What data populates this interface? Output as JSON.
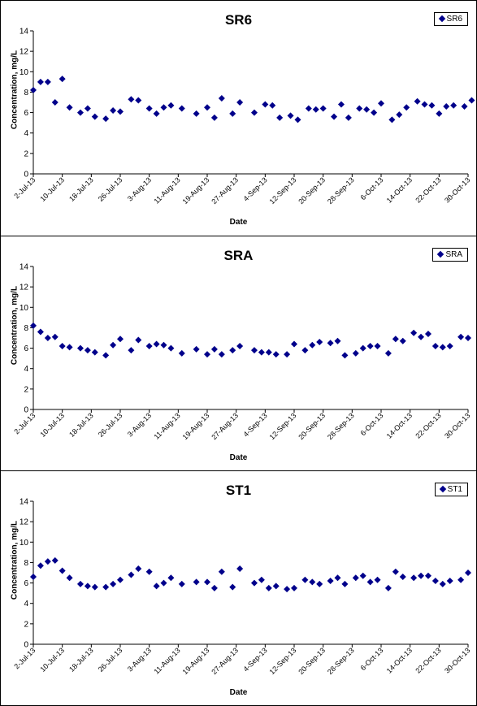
{
  "chart_data": [
    {
      "type": "scatter",
      "title": "SR6",
      "xlabel": "Date",
      "ylabel": "Concentration, mg/L",
      "ylim": [
        0,
        14
      ],
      "yticks": [
        0,
        2,
        4,
        6,
        8,
        10,
        12,
        14
      ],
      "xlim": [
        "2013-07-02",
        "2013-10-30"
      ],
      "xticks": [
        "2-Jul-13",
        "10-Jul-13",
        "18-Jul-13",
        "26-Jul-13",
        "3-Aug-13",
        "11-Aug-13",
        "19-Aug-13",
        "27-Aug-13",
        "4-Sep-13",
        "12-Sep-13",
        "20-Sep-13",
        "28-Sep-13",
        "6-Oct-13",
        "14-Oct-13",
        "22-Oct-13",
        "30-Oct-13"
      ],
      "legend_position": "top-right",
      "series": [
        {
          "name": "SR6",
          "color": "#00008B",
          "marker": "diamond",
          "points": [
            [
              "2013-07-02",
              8.2
            ],
            [
              "2013-07-04",
              9.0
            ],
            [
              "2013-07-06",
              9.0
            ],
            [
              "2013-07-08",
              7.0
            ],
            [
              "2013-07-10",
              9.3
            ],
            [
              "2013-07-12",
              6.5
            ],
            [
              "2013-07-15",
              6.0
            ],
            [
              "2013-07-17",
              6.4
            ],
            [
              "2013-07-19",
              5.6
            ],
            [
              "2013-07-22",
              5.4
            ],
            [
              "2013-07-24",
              6.2
            ],
            [
              "2013-07-26",
              6.1
            ],
            [
              "2013-07-29",
              7.3
            ],
            [
              "2013-07-31",
              7.2
            ],
            [
              "2013-08-03",
              6.4
            ],
            [
              "2013-08-05",
              5.9
            ],
            [
              "2013-08-07",
              6.5
            ],
            [
              "2013-08-09",
              6.7
            ],
            [
              "2013-08-12",
              6.4
            ],
            [
              "2013-08-16",
              5.9
            ],
            [
              "2013-08-19",
              6.5
            ],
            [
              "2013-08-21",
              5.5
            ],
            [
              "2013-08-23",
              7.4
            ],
            [
              "2013-08-26",
              5.9
            ],
            [
              "2013-08-28",
              7.0
            ],
            [
              "2013-09-01",
              6.0
            ],
            [
              "2013-09-04",
              6.8
            ],
            [
              "2013-09-06",
              6.7
            ],
            [
              "2013-09-08",
              5.5
            ],
            [
              "2013-09-11",
              5.7
            ],
            [
              "2013-09-13",
              5.3
            ],
            [
              "2013-09-16",
              6.4
            ],
            [
              "2013-09-18",
              6.3
            ],
            [
              "2013-09-20",
              6.4
            ],
            [
              "2013-09-23",
              5.6
            ],
            [
              "2013-09-25",
              6.8
            ],
            [
              "2013-09-27",
              5.5
            ],
            [
              "2013-09-30",
              6.4
            ],
            [
              "2013-10-02",
              6.3
            ],
            [
              "2013-10-04",
              6.0
            ],
            [
              "2013-10-06",
              6.9
            ],
            [
              "2013-10-09",
              5.3
            ],
            [
              "2013-10-11",
              5.8
            ],
            [
              "2013-10-13",
              6.5
            ],
            [
              "2013-10-16",
              7.1
            ],
            [
              "2013-10-18",
              6.8
            ],
            [
              "2013-10-20",
              6.7
            ],
            [
              "2013-10-22",
              5.9
            ],
            [
              "2013-10-24",
              6.6
            ],
            [
              "2013-10-26",
              6.7
            ],
            [
              "2013-10-29",
              6.6
            ],
            [
              "2013-10-31",
              7.2
            ]
          ]
        }
      ]
    },
    {
      "type": "scatter",
      "title": "SRA",
      "xlabel": "Date",
      "ylabel": "Concentration, mg/L",
      "ylim": [
        0,
        14
      ],
      "yticks": [
        0,
        2,
        4,
        6,
        8,
        10,
        12,
        14
      ],
      "xlim": [
        "2013-07-02",
        "2013-10-30"
      ],
      "xticks": [
        "2-Jul-13",
        "10-Jul-13",
        "18-Jul-13",
        "26-Jul-13",
        "3-Aug-13",
        "11-Aug-13",
        "19-Aug-13",
        "27-Aug-13",
        "4-Sep-13",
        "12-Sep-13",
        "20-Sep-13",
        "28-Sep-13",
        "6-Oct-13",
        "14-Oct-13",
        "22-Oct-13",
        "30-Oct-13"
      ],
      "legend_position": "top-right",
      "series": [
        {
          "name": "SRA",
          "color": "#00008B",
          "marker": "diamond",
          "points": [
            [
              "2013-07-02",
              8.2
            ],
            [
              "2013-07-04",
              7.6
            ],
            [
              "2013-07-06",
              7.0
            ],
            [
              "2013-07-08",
              7.1
            ],
            [
              "2013-07-10",
              6.2
            ],
            [
              "2013-07-12",
              6.1
            ],
            [
              "2013-07-15",
              6.0
            ],
            [
              "2013-07-17",
              5.8
            ],
            [
              "2013-07-19",
              5.6
            ],
            [
              "2013-07-22",
              5.3
            ],
            [
              "2013-07-24",
              6.3
            ],
            [
              "2013-07-26",
              6.9
            ],
            [
              "2013-07-29",
              5.8
            ],
            [
              "2013-07-31",
              6.8
            ],
            [
              "2013-08-03",
              6.2
            ],
            [
              "2013-08-05",
              6.4
            ],
            [
              "2013-08-07",
              6.3
            ],
            [
              "2013-08-09",
              6.0
            ],
            [
              "2013-08-12",
              5.5
            ],
            [
              "2013-08-16",
              5.9
            ],
            [
              "2013-08-19",
              5.4
            ],
            [
              "2013-08-21",
              5.9
            ],
            [
              "2013-08-23",
              5.4
            ],
            [
              "2013-08-26",
              5.8
            ],
            [
              "2013-08-28",
              6.2
            ],
            [
              "2013-09-01",
              5.8
            ],
            [
              "2013-09-03",
              5.6
            ],
            [
              "2013-09-05",
              5.6
            ],
            [
              "2013-09-07",
              5.4
            ],
            [
              "2013-09-10",
              5.4
            ],
            [
              "2013-09-12",
              6.4
            ],
            [
              "2013-09-15",
              5.8
            ],
            [
              "2013-09-17",
              6.3
            ],
            [
              "2013-09-19",
              6.6
            ],
            [
              "2013-09-22",
              6.5
            ],
            [
              "2013-09-24",
              6.7
            ],
            [
              "2013-09-26",
              5.3
            ],
            [
              "2013-09-29",
              5.5
            ],
            [
              "2013-10-01",
              6.0
            ],
            [
              "2013-10-03",
              6.2
            ],
            [
              "2013-10-05",
              6.2
            ],
            [
              "2013-10-08",
              5.5
            ],
            [
              "2013-10-10",
              6.9
            ],
            [
              "2013-10-12",
              6.7
            ],
            [
              "2013-10-15",
              7.5
            ],
            [
              "2013-10-17",
              7.1
            ],
            [
              "2013-10-19",
              7.4
            ],
            [
              "2013-10-21",
              6.2
            ],
            [
              "2013-10-23",
              6.1
            ],
            [
              "2013-10-25",
              6.2
            ],
            [
              "2013-10-28",
              7.1
            ],
            [
              "2013-10-30",
              7.0
            ]
          ]
        }
      ]
    },
    {
      "type": "scatter",
      "title": "ST1",
      "xlabel": "Date",
      "ylabel": "Concentration, mg/L",
      "ylim": [
        0,
        14
      ],
      "yticks": [
        0,
        2,
        4,
        6,
        8,
        10,
        12,
        14
      ],
      "xlim": [
        "2013-07-02",
        "2013-10-30"
      ],
      "xticks": [
        "2-Jul-13",
        "10-Jul-13",
        "18-Jul-13",
        "26-Jul-13",
        "3-Aug-13",
        "11-Aug-13",
        "19-Aug-13",
        "27-Aug-13",
        "4-Sep-13",
        "12-Sep-13",
        "20-Sep-13",
        "28-Sep-13",
        "6-Oct-13",
        "14-Oct-13",
        "22-Oct-13",
        "30-Oct-13"
      ],
      "legend_position": "top-right",
      "series": [
        {
          "name": "ST1",
          "color": "#00008B",
          "marker": "diamond",
          "points": [
            [
              "2013-07-02",
              6.6
            ],
            [
              "2013-07-04",
              7.7
            ],
            [
              "2013-07-06",
              8.1
            ],
            [
              "2013-07-08",
              8.2
            ],
            [
              "2013-07-10",
              7.2
            ],
            [
              "2013-07-12",
              6.5
            ],
            [
              "2013-07-15",
              5.9
            ],
            [
              "2013-07-17",
              5.7
            ],
            [
              "2013-07-19",
              5.6
            ],
            [
              "2013-07-22",
              5.6
            ],
            [
              "2013-07-24",
              5.9
            ],
            [
              "2013-07-26",
              6.3
            ],
            [
              "2013-07-29",
              6.8
            ],
            [
              "2013-07-31",
              7.4
            ],
            [
              "2013-08-03",
              7.1
            ],
            [
              "2013-08-05",
              5.7
            ],
            [
              "2013-08-07",
              6.0
            ],
            [
              "2013-08-09",
              6.5
            ],
            [
              "2013-08-12",
              5.9
            ],
            [
              "2013-08-16",
              6.1
            ],
            [
              "2013-08-19",
              6.1
            ],
            [
              "2013-08-21",
              5.5
            ],
            [
              "2013-08-23",
              7.1
            ],
            [
              "2013-08-26",
              5.6
            ],
            [
              "2013-08-28",
              7.4
            ],
            [
              "2013-09-01",
              6.0
            ],
            [
              "2013-09-03",
              6.3
            ],
            [
              "2013-09-05",
              5.5
            ],
            [
              "2013-09-07",
              5.7
            ],
            [
              "2013-09-10",
              5.4
            ],
            [
              "2013-09-12",
              5.5
            ],
            [
              "2013-09-15",
              6.3
            ],
            [
              "2013-09-17",
              6.1
            ],
            [
              "2013-09-19",
              5.9
            ],
            [
              "2013-09-22",
              6.2
            ],
            [
              "2013-09-24",
              6.5
            ],
            [
              "2013-09-26",
              5.9
            ],
            [
              "2013-09-29",
              6.5
            ],
            [
              "2013-10-01",
              6.7
            ],
            [
              "2013-10-03",
              6.1
            ],
            [
              "2013-10-05",
              6.3
            ],
            [
              "2013-10-08",
              5.5
            ],
            [
              "2013-10-10",
              7.1
            ],
            [
              "2013-10-12",
              6.6
            ],
            [
              "2013-10-15",
              6.5
            ],
            [
              "2013-10-17",
              6.7
            ],
            [
              "2013-10-19",
              6.7
            ],
            [
              "2013-10-21",
              6.2
            ],
            [
              "2013-10-23",
              5.9
            ],
            [
              "2013-10-25",
              6.2
            ],
            [
              "2013-10-28",
              6.3
            ],
            [
              "2013-10-30",
              7.0
            ]
          ]
        }
      ]
    }
  ]
}
